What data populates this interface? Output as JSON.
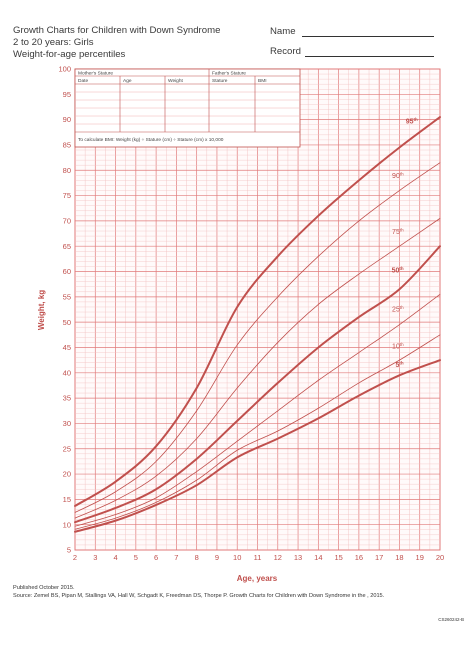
{
  "header": {
    "title_line1": "Growth Charts for Children with Down Syndrome",
    "title_line2": "2 to 20 years: Girls",
    "title_line3": "Weight-for-age percentiles",
    "name_label": "Name",
    "record_label": "Record"
  },
  "table": {
    "mothers_stature": "Mother's Stature",
    "fathers_stature": "Father's Stature",
    "col_date": "Date",
    "col_age": "Age",
    "col_weight": "Weight",
    "col_stature": "Stature",
    "col_bmi": "BMI",
    "bmi_formula": "To calculate BMI: Weight (kg) ÷ Stature (cm) ÷ Stature (cm) x 10,000"
  },
  "footer": {
    "published": "Published October 2015.",
    "source": "Source: Zemel BS, Pipan M, Stallings VA, Hall W, Schgadt K, Freedman DS, Thorpe P. Growth Charts for Children with Down Syndrome in the  , 2015.",
    "code": "CS260242-B"
  },
  "colors": {
    "grid_major": "#e07a7a",
    "grid_minor": "#f2c2c2",
    "curve": "#c0504d",
    "axis_text": "#c0504d"
  },
  "chart_data": {
    "type": "line",
    "xlabel": "Age, years",
    "ylabel": "Weight, kg",
    "xlim": [
      2,
      20
    ],
    "ylim": [
      5,
      100
    ],
    "x_ticks": [
      2,
      3,
      4,
      5,
      6,
      7,
      8,
      9,
      10,
      11,
      12,
      13,
      14,
      15,
      16,
      17,
      18,
      19,
      20
    ],
    "y_ticks": [
      5,
      10,
      15,
      20,
      25,
      30,
      35,
      40,
      45,
      50,
      55,
      60,
      65,
      70,
      75,
      80,
      85,
      90,
      95,
      100
    ],
    "x": [
      2,
      4,
      6,
      8,
      10,
      12,
      14,
      16,
      18,
      20
    ],
    "series": [
      {
        "name": "95th",
        "label_main": "95",
        "label_sup": "th",
        "bold": true,
        "values": [
          13.7,
          18.5,
          25.5,
          37,
          53,
          63,
          71,
          78,
          84.5,
          90.5
        ]
      },
      {
        "name": "90th",
        "label_main": "90",
        "label_sup": "th",
        "bold": false,
        "values": [
          12.4,
          16.5,
          22.5,
          32.5,
          45.5,
          55,
          63,
          70,
          76,
          81.5
        ]
      },
      {
        "name": "75th",
        "label_main": "75",
        "label_sup": "th",
        "bold": false,
        "values": [
          11.3,
          14.8,
          19.6,
          27,
          37,
          46,
          53.5,
          59.5,
          65,
          70.5
        ]
      },
      {
        "name": "50th",
        "label_main": "50",
        "label_sup": "th",
        "bold": true,
        "values": [
          10.5,
          13.3,
          17,
          23,
          30.5,
          38,
          45,
          51,
          56.5,
          65
        ]
      },
      {
        "name": "25th",
        "label_main": "25",
        "label_sup": "th",
        "bold": false,
        "values": [
          9.7,
          12,
          15.3,
          20.5,
          26.5,
          32.5,
          38.5,
          44,
          49.5,
          55.5
        ]
      },
      {
        "name": "10th",
        "label_main": "10",
        "label_sup": "th",
        "bold": false,
        "values": [
          9.1,
          11.3,
          14.4,
          18.8,
          24.7,
          28.5,
          33,
          38,
          42.5,
          47.5
        ]
      },
      {
        "name": "5th",
        "label_main": "5",
        "label_sup": "th",
        "bold": true,
        "values": [
          8.6,
          10.8,
          13.9,
          17.8,
          23.3,
          27,
          31,
          35.5,
          39.5,
          42.5
        ]
      }
    ]
  }
}
